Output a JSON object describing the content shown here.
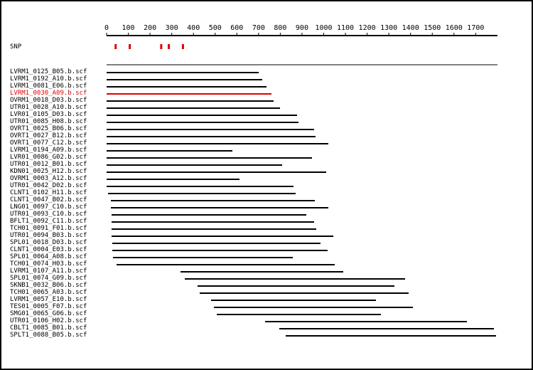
{
  "axis": {
    "min": 0,
    "max": 1800,
    "ticks": [
      0,
      100,
      200,
      300,
      400,
      500,
      600,
      700,
      800,
      900,
      1000,
      1100,
      1200,
      1300,
      1400,
      1500,
      1600,
      1700
    ]
  },
  "snp": {
    "label": "SNP",
    "positions": [
      40,
      105,
      250,
      285,
      350
    ],
    "color": "#e00000"
  },
  "highlight_color": "#e00000",
  "reads": [
    {
      "name": "LVRM1_0125_B05.b.scf",
      "start": 0,
      "end": 700
    },
    {
      "name": "LVRM1_0192_A10.b.scf",
      "start": 0,
      "end": 718
    },
    {
      "name": "LVRM1_0081_E06.b.scf",
      "start": 0,
      "end": 738
    },
    {
      "name": "LVRM1_0030_A09.b.scf",
      "start": 0,
      "end": 760,
      "highlight": true
    },
    {
      "name": "OVRM1_0018_D03.b.scf",
      "start": 0,
      "end": 768
    },
    {
      "name": "UTR01_0028_A10.b.scf",
      "start": 0,
      "end": 800
    },
    {
      "name": "LVR01_0105_D03.b.scf",
      "start": 0,
      "end": 878
    },
    {
      "name": "UTR01_0085_H08.b.scf",
      "start": 0,
      "end": 883
    },
    {
      "name": "OVRT1_0025_B06.b.scf",
      "start": 0,
      "end": 955
    },
    {
      "name": "OVRT1_0027_B12.b.scf",
      "start": 0,
      "end": 963
    },
    {
      "name": "OVRT1_0077_C12.b.scf",
      "start": 0,
      "end": 1020
    },
    {
      "name": "LVRM1_0194_A09.b.scf",
      "start": 0,
      "end": 578
    },
    {
      "name": "LVR01_0086_G02.b.scf",
      "start": 0,
      "end": 945
    },
    {
      "name": "UTR01_0012_B01.b.scf",
      "start": 0,
      "end": 810
    },
    {
      "name": "KDN01_0025_H12.b.scf",
      "start": 0,
      "end": 1010
    },
    {
      "name": "OVRM1_0003_A12.b.scf",
      "start": 0,
      "end": 612
    },
    {
      "name": "UTR01_0042_D02.b.scf",
      "start": 0,
      "end": 862
    },
    {
      "name": "CLNT1_0102_H11.b.scf",
      "start": 5,
      "end": 872
    },
    {
      "name": "CLNT1_0047_B02.b.scf",
      "start": 20,
      "end": 960
    },
    {
      "name": "LNG01_0097_C10.b.scf",
      "start": 20,
      "end": 1020
    },
    {
      "name": "UTR01_0093_C10.b.scf",
      "start": 22,
      "end": 920
    },
    {
      "name": "BFLT1_0092_C11.b.scf",
      "start": 22,
      "end": 955
    },
    {
      "name": "TCH01_0091_F01.b.scf",
      "start": 22,
      "end": 965
    },
    {
      "name": "UTR01_0094_B03.b.scf",
      "start": 22,
      "end": 1043
    },
    {
      "name": "SPL01_0018_D03.b.scf",
      "start": 25,
      "end": 985
    },
    {
      "name": "CLNT1_0004_E03.b.scf",
      "start": 25,
      "end": 1018
    },
    {
      "name": "SPL01_0064_A08.b.scf",
      "start": 30,
      "end": 857
    },
    {
      "name": "TCH01_0074_H03.b.scf",
      "start": 45,
      "end": 1050
    },
    {
      "name": "LVRM1_0107_A11.b.scf",
      "start": 340,
      "end": 1090
    },
    {
      "name": "SPL01_0074_G09.b.scf",
      "start": 360,
      "end": 1375
    },
    {
      "name": "SKNB1_0032_B06.b.scf",
      "start": 418,
      "end": 1325
    },
    {
      "name": "TCH01_0065_A03.b.scf",
      "start": 430,
      "end": 1390
    },
    {
      "name": "LVRM1_0057_E10.b.scf",
      "start": 480,
      "end": 1240
    },
    {
      "name": "TES01_0005_F07.b.scf",
      "start": 495,
      "end": 1410
    },
    {
      "name": "SMG01_0065_G06.b.scf",
      "start": 508,
      "end": 1265
    },
    {
      "name": "UTR01_0106_H02.b.scf",
      "start": 730,
      "end": 1660
    },
    {
      "name": "CBLT1_0085_B01.b.scf",
      "start": 795,
      "end": 1785
    },
    {
      "name": "SPLT1_0088_B05.b.scf",
      "start": 825,
      "end": 1795
    }
  ]
}
